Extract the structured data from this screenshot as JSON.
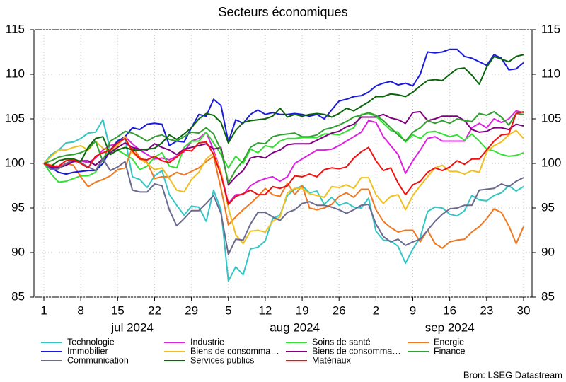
{
  "chart_data": {
    "type": "line",
    "title": "Secteurs économiques",
    "source": "Bron: LSEG Datastream",
    "x": [
      "2024-07-01",
      "2024-07-02",
      "2024-07-03",
      "2024-07-04",
      "2024-07-05",
      "2024-07-08",
      "2024-07-09",
      "2024-07-10",
      "2024-07-11",
      "2024-07-12",
      "2024-07-15",
      "2024-07-16",
      "2024-07-17",
      "2024-07-18",
      "2024-07-19",
      "2024-07-22",
      "2024-07-23",
      "2024-07-24",
      "2024-07-25",
      "2024-07-26",
      "2024-07-29",
      "2024-07-30",
      "2024-07-31",
      "2024-08-01",
      "2024-08-02",
      "2024-08-05",
      "2024-08-06",
      "2024-08-07",
      "2024-08-08",
      "2024-08-09",
      "2024-08-12",
      "2024-08-13",
      "2024-08-14",
      "2024-08-15",
      "2024-08-16",
      "2024-08-19",
      "2024-08-20",
      "2024-08-21",
      "2024-08-22",
      "2024-08-23",
      "2024-08-26",
      "2024-08-27",
      "2024-08-28",
      "2024-08-29",
      "2024-08-30",
      "2024-09-02",
      "2024-09-03",
      "2024-09-04",
      "2024-09-05",
      "2024-09-06",
      "2024-09-09",
      "2024-09-10",
      "2024-09-11",
      "2024-09-12",
      "2024-09-13",
      "2024-09-16",
      "2024-09-17",
      "2024-09-18",
      "2024-09-19",
      "2024-09-20",
      "2024-09-23",
      "2024-09-24",
      "2024-09-25",
      "2024-09-26",
      "2024-09-27",
      "2024-09-30"
    ],
    "xticks": [
      {
        "value": "2024-07-01",
        "label": "1"
      },
      {
        "value": "2024-07-08",
        "label": "8"
      },
      {
        "value": "2024-07-15",
        "label": "15"
      },
      {
        "value": "2024-07-22",
        "label": "22"
      },
      {
        "value": "2024-07-29",
        "label": "29"
      },
      {
        "value": "2024-08-05",
        "label": "5"
      },
      {
        "value": "2024-08-12",
        "label": "12"
      },
      {
        "value": "2024-08-19",
        "label": "19"
      },
      {
        "value": "2024-08-26",
        "label": "26"
      },
      {
        "value": "2024-09-02",
        "label": "2"
      },
      {
        "value": "2024-09-09",
        "label": "9"
      },
      {
        "value": "2024-09-16",
        "label": "16"
      },
      {
        "value": "2024-09-23",
        "label": "23"
      },
      {
        "value": "2024-09-30",
        "label": "30"
      }
    ],
    "x_month_labels": [
      {
        "value": "2024-07-17",
        "label": "jul 2024"
      },
      {
        "value": "2024-08-16",
        "label": "aug 2024"
      },
      {
        "value": "2024-09-16",
        "label": "sep 2024"
      }
    ],
    "ylim": [
      85,
      115
    ],
    "yticks": [
      85,
      90,
      95,
      100,
      105,
      110,
      115
    ],
    "y2lim": [
      85,
      115
    ],
    "y2ticks": [
      85,
      90,
      95,
      100,
      105,
      110,
      115
    ],
    "grid": true,
    "series": [
      {
        "name": "Technologie",
        "color": "#33c6c6",
        "values": [
          100,
          101,
          101.5,
          102.3,
          102.4,
          102.8,
          103.4,
          103.5,
          104.9,
          101.5,
          102.6,
          102.8,
          98.5,
          98.2,
          97.3,
          98.6,
          99.2,
          96.5,
          95.3,
          94.2,
          95.2,
          95.1,
          93.5,
          97,
          94.8,
          86.8,
          88.4,
          87.5,
          90.4,
          90.6,
          91.3,
          93.8,
          94.2,
          96.4,
          97.1,
          97.5,
          96.7,
          96.9,
          95.4,
          96.2,
          95.3,
          95.6,
          95.1,
          95,
          96.1,
          92.4,
          91.4,
          91.3,
          90.7,
          88.8,
          90.4,
          91.7,
          94.6,
          95.1,
          95,
          94.3,
          94.1,
          94.7,
          96.4,
          95.9,
          95.8,
          96.4,
          96.7,
          97.5,
          96.9,
          97.4
        ]
      },
      {
        "name": "Industrie",
        "color": "#e020e0",
        "values": [
          100,
          99.3,
          99.6,
          100,
          100.2,
          100.3,
          100.1,
          100.6,
          101.5,
          102,
          102.3,
          103,
          102.2,
          101.5,
          101,
          100.5,
          100.6,
          100.4,
          100.8,
          101.3,
          102.5,
          102.8,
          103.5,
          101.5,
          99,
          95.5,
          96.5,
          96.5,
          97.5,
          98,
          98.3,
          98.5,
          98,
          98.5,
          100,
          100.5,
          101,
          101.5,
          101.5,
          101.6,
          102,
          102.5,
          103,
          103.5,
          104.8,
          104.6,
          103,
          102,
          101,
          98.9,
          100.3,
          101.5,
          102.8,
          103,
          102.5,
          102.5,
          102.5,
          102.5,
          104,
          104.5,
          104,
          105,
          104.6,
          105,
          105.9,
          105.7
        ]
      },
      {
        "name": "Soins de santé",
        "color": "#33e033",
        "values": [
          100,
          98.8,
          97.9,
          98,
          98.3,
          98.6,
          98.6,
          99,
          100.5,
          101.5,
          101.5,
          101,
          100.5,
          99.3,
          99.7,
          100.7,
          101.2,
          99.7,
          99.5,
          101.8,
          102.5,
          102.5,
          103.5,
          102.3,
          101,
          99.5,
          100.8,
          100,
          101.6,
          101.2,
          102,
          101.8,
          102.5,
          102.8,
          102.8,
          102.9,
          102.9,
          102.9,
          103.3,
          103.3,
          103.2,
          103.6,
          104,
          105.5,
          105.6,
          105.3,
          104.5,
          103.7,
          103.5,
          102.4,
          103.2,
          102.8,
          103.5,
          103.6,
          103.3,
          103,
          103.2,
          102.6,
          103.3,
          102.5,
          101.6,
          101.4,
          101,
          100.8,
          100.9,
          101.2
        ]
      },
      {
        "name": "Energie",
        "color": "#f07820",
        "values": [
          100,
          99.8,
          99.5,
          100,
          99.8,
          98.5,
          97.4,
          97.9,
          98.2,
          98.6,
          99.3,
          99.5,
          101.8,
          100.7,
          100.1,
          98.3,
          98.5,
          98.5,
          99,
          98.7,
          99.1,
          99.5,
          100.2,
          100.8,
          97.2,
          93.1,
          94,
          94.8,
          95.5,
          96.3,
          97.2,
          96.5,
          96.3,
          97.8,
          96.5,
          97.5,
          95,
          94.8,
          95,
          95.4,
          96.3,
          96.7,
          96.2,
          97.1,
          97.1,
          94.8,
          93.5,
          92.8,
          92.3,
          92.5,
          92.5,
          91.2,
          92.5,
          91,
          90.5,
          91.2,
          91.4,
          91.5,
          92.3,
          92.9,
          93.8,
          94.9,
          94.5,
          93,
          91,
          92.9
        ]
      },
      {
        "name": "Immobilier",
        "color": "#1a1adc",
        "values": [
          100,
          99.5,
          99,
          98.8,
          99,
          99.1,
          99.2,
          99.2,
          100,
          101.5,
          102.5,
          103,
          104,
          103.8,
          104.4,
          104.5,
          104.4,
          102,
          102.5,
          102.4,
          104,
          105.5,
          105.3,
          107.2,
          106.5,
          102.4,
          104.9,
          104.5,
          105.5,
          106,
          105.5,
          105.7,
          105.5,
          105.5,
          105.6,
          105.5,
          105.3,
          105.5,
          105,
          106,
          107,
          107.2,
          107.5,
          107.6,
          108,
          108.7,
          109,
          109.2,
          108.8,
          109,
          108.7,
          110,
          112.5,
          112.4,
          112.5,
          112.8,
          112.8,
          112,
          111.8,
          111.4,
          111,
          112.2,
          111.8,
          110.5,
          110.6,
          111.3
        ]
      },
      {
        "name": "Biens de consomma…",
        "color": "#f0c020",
        "values": [
          100,
          100.8,
          101.5,
          101.5,
          101.8,
          102,
          101.5,
          102.5,
          101.7,
          101.5,
          102,
          103,
          101.2,
          100.5,
          100,
          99.3,
          99.5,
          98.3,
          97,
          96.8,
          98.2,
          99,
          100.5,
          101.2,
          99,
          95,
          92,
          91,
          92.4,
          92.5,
          92.3,
          93.5,
          94,
          96.7,
          97.2,
          97.2,
          96.6,
          96.4,
          96.2,
          97.4,
          97.3,
          97.6,
          97.2,
          98.4,
          98.4,
          96.5,
          95.5,
          96.3,
          96.5,
          94.8,
          96.4,
          97.5,
          98.5,
          99.5,
          99.8,
          99.1,
          99.1,
          98.8,
          99.2,
          99,
          101.3,
          102,
          102.4,
          103.2,
          103.7,
          102.8
        ]
      },
      {
        "name": "Biens de consomma…",
        "color": "#800080",
        "values": [
          100,
          99.6,
          99.5,
          99.8,
          100.2,
          100.3,
          100.3,
          99.8,
          100.5,
          101.2,
          101.8,
          102.3,
          101.8,
          101.6,
          101.5,
          102.2,
          101.8,
          101.5,
          101,
          101.6,
          101.8,
          102,
          102.2,
          101.6,
          101.8,
          97.6,
          98.5,
          99.2,
          100.6,
          100.8,
          100.6,
          101.2,
          101.5,
          102.1,
          102.2,
          102.2,
          102.2,
          102.6,
          103,
          103.4,
          103.6,
          104.1,
          104.4,
          105.2,
          105.2,
          105.2,
          105.5,
          105.1,
          104.9,
          104.5,
          105.7,
          105.8,
          104.8,
          105,
          105.3,
          105.3,
          105.3,
          104.8,
          103.8,
          103.5,
          103.6,
          104,
          104,
          103.8,
          104.4,
          104.2
        ]
      },
      {
        "name": "Finance",
        "color": "#30a030",
        "values": [
          100,
          100.3,
          100.7,
          100.9,
          101,
          101.2,
          101.6,
          102.5,
          100.2,
          102.5,
          103,
          103.6,
          103.4,
          103,
          102.5,
          103,
          103.2,
          102.7,
          102.5,
          103,
          103.5,
          103.4,
          104,
          103.3,
          101.5,
          97.8,
          99.3,
          100.3,
          101.8,
          102.3,
          102.2,
          103,
          103.2,
          103.3,
          103.4,
          103,
          103,
          103.2,
          103.8,
          104,
          104.3,
          104.7,
          105.2,
          105.4,
          105.7,
          105.4,
          104.8,
          104,
          103.2,
          102.5,
          103.5,
          104,
          104.8,
          104.5,
          104.8,
          104.5,
          105,
          104.8,
          104.7,
          105.6,
          105.4,
          105.8,
          105.2,
          104.3,
          105.6,
          105.5
        ]
      },
      {
        "name": "Communication",
        "color": "#6a6a90",
        "values": [
          100,
          99.3,
          99.4,
          100,
          100.4,
          100.1,
          99.6,
          99.2,
          100.5,
          99.2,
          99.6,
          100.2,
          97,
          96.8,
          96.8,
          97.7,
          97.5,
          94.8,
          93,
          93.8,
          94.7,
          94.7,
          95.5,
          96.4,
          94.4,
          89.8,
          91.5,
          91.4,
          93.2,
          94.5,
          94.5,
          94,
          93.6,
          94.5,
          94.8,
          95.5,
          95.7,
          95.3,
          95.3,
          95.1,
          94.8,
          94.4,
          94.8,
          95.3,
          95.4,
          93.2,
          91.8,
          91.2,
          91.5,
          90.8,
          91.2,
          91.5,
          92.5,
          93.5,
          94.3,
          94.9,
          95,
          95.3,
          95.3,
          97,
          97.1,
          97.2,
          97.7,
          97.4,
          98,
          98.4
        ]
      },
      {
        "name": "Services publics",
        "color": "#0a640a",
        "values": [
          100,
          99.7,
          100.3,
          100.5,
          100.5,
          100.2,
          101.8,
          102.8,
          103,
          101,
          101.5,
          101.8,
          101.5,
          101.5,
          101.6,
          101.7,
          102.3,
          103.2,
          102.7,
          103.3,
          104,
          105,
          105.6,
          105.4,
          104.6,
          102.3,
          103.7,
          104.6,
          104.8,
          104.9,
          105,
          105.3,
          106.2,
          105.2,
          105.5,
          105.3,
          105.5,
          105.6,
          105.5,
          105.2,
          105.6,
          106.2,
          105.9,
          106.4,
          106.9,
          107.5,
          107.5,
          107.8,
          107.7,
          107.5,
          108,
          108.7,
          109.3,
          109.4,
          109.3,
          110,
          110.6,
          110.7,
          109.9,
          108.9,
          110.8,
          112,
          111.7,
          111.4,
          112,
          112.2
        ]
      },
      {
        "name": "Matériaux",
        "color": "#f01010",
        "values": [
          100,
          99.7,
          99.7,
          100.3,
          100.4,
          100,
          99.5,
          100.8,
          101.2,
          101.5,
          102.3,
          102.8,
          101.4,
          100.5,
          100.4,
          100.8,
          100.3,
          100.1,
          100.7,
          101.5,
          101.4,
          102.3,
          102.4,
          101,
          98.7,
          95.4,
          96.3,
          96.6,
          97,
          96.5,
          96.5,
          97.4,
          97.2,
          97.5,
          98.6,
          98.5,
          98.8,
          98.5,
          99.3,
          99.5,
          99.4,
          99.6,
          100.6,
          101.3,
          101.8,
          100.3,
          99.2,
          99.5,
          97.8,
          96.5,
          97.6,
          98,
          99,
          99.5,
          99.2,
          99.6,
          100.3,
          99.9,
          100.5,
          100.5,
          101.5,
          102.5,
          103.2,
          103.3,
          105.6,
          105.8
        ]
      }
    ]
  }
}
